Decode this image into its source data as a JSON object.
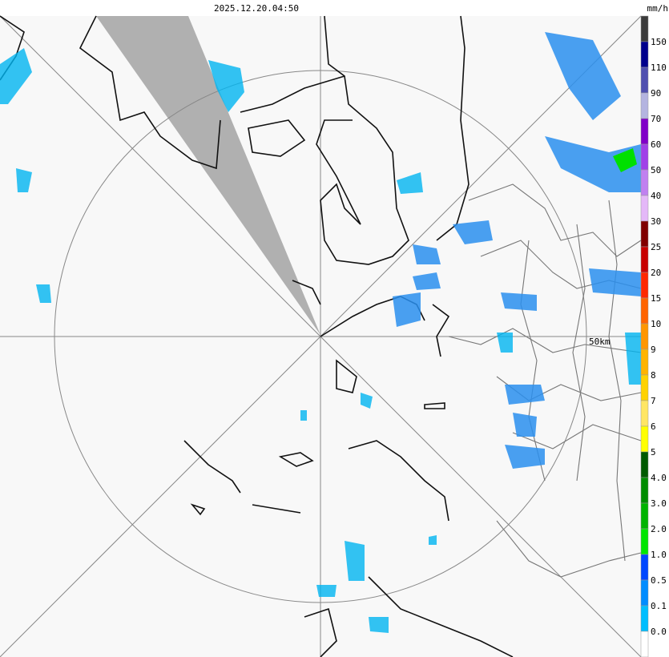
{
  "header": {
    "timestamp": "2025.12.20.04:50",
    "unit": "mm/h"
  },
  "map": {
    "range_label": "50km"
  },
  "legend": {
    "labels": [
      "150",
      "110",
      "90",
      "70",
      "60",
      "50",
      "40",
      "30",
      "25",
      "20",
      "15",
      "10",
      "9",
      "8",
      "7",
      "6",
      "5",
      "4.0",
      "3.0",
      "2.0",
      "1.0",
      "0.5",
      "0.1",
      "0.0"
    ],
    "colors": [
      "#3c3c3c",
      "#00008c",
      "#5050b0",
      "#b4b4e0",
      "#8000c8",
      "#a040e8",
      "#c080f0",
      "#e4b8f8",
      "#800000",
      "#c80000",
      "#ff2800",
      "#ff6400",
      "#ff9600",
      "#ffb400",
      "#ffd200",
      "#ffe664",
      "#ffff00",
      "#005a00",
      "#008c00",
      "#00b400",
      "#00e600",
      "#0046ff",
      "#008cff",
      "#00beff",
      "#ffffff"
    ]
  }
}
